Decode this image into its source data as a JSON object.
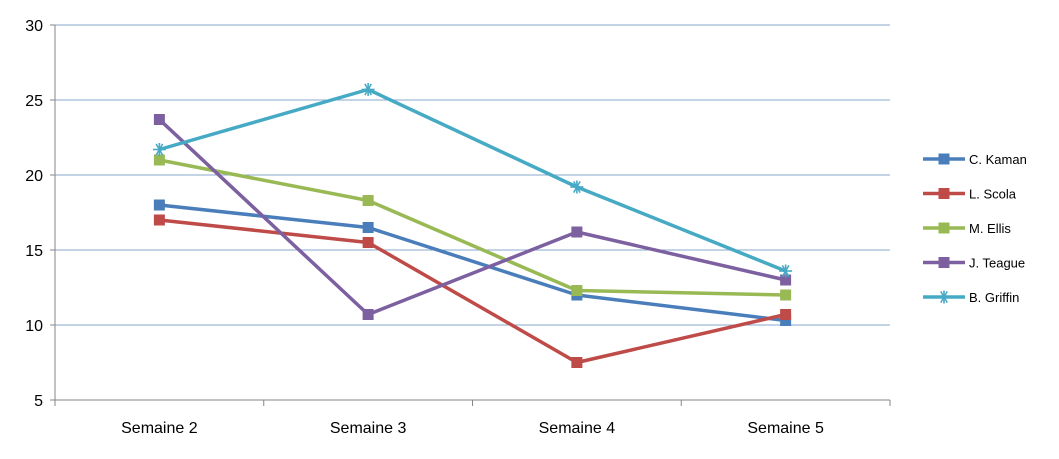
{
  "chart_data": {
    "type": "line",
    "title": "",
    "xlabel": "",
    "ylabel": "",
    "categories": [
      "Semaine 2",
      "Semaine 3",
      "Semaine 4",
      "Semaine 5"
    ],
    "ylim": [
      5,
      30
    ],
    "yticks": [
      "5",
      "10",
      "15",
      "20",
      "25",
      "30"
    ],
    "grid": true,
    "legend_position": "right",
    "series": [
      {
        "name": "C. Kaman",
        "values": [
          18,
          16.5,
          12,
          10.3
        ],
        "color": "#4A7EBB",
        "marker": "square"
      },
      {
        "name": "L. Scola",
        "values": [
          17,
          15.5,
          7.5,
          10.7
        ],
        "color": "#BE4B48",
        "marker": "square"
      },
      {
        "name": "M. Ellis",
        "values": [
          21,
          18.3,
          12.3,
          12
        ],
        "color": "#98B954",
        "marker": "square"
      },
      {
        "name": "J. Teague",
        "values": [
          23.7,
          10.7,
          16.2,
          13
        ],
        "color": "#7D60A0",
        "marker": "square"
      },
      {
        "name": "B. Griffin",
        "values": [
          21.7,
          25.7,
          19.2,
          13.6
        ],
        "color": "#46AAC5",
        "marker": "star"
      }
    ]
  }
}
